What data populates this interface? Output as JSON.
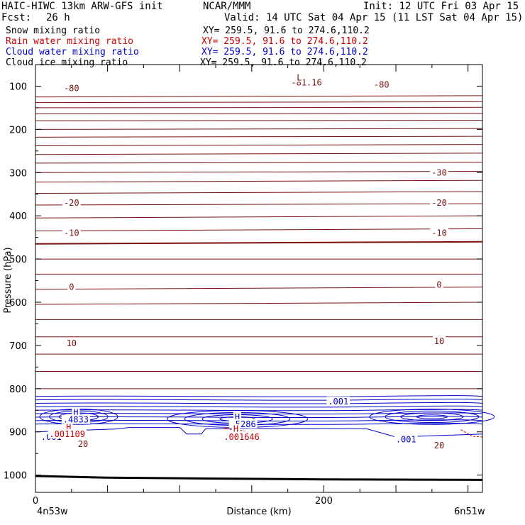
{
  "header": {
    "model_title": "HAIC-HIWC 13km ARW-GFS init",
    "org": "NCAR/MMM",
    "init": "Init: 12 UTC Fri 03 Apr 15",
    "fcst_label": "Fcst:",
    "fcst_value": "26 h",
    "valid": "Valid: 14 UTC Sat 04 Apr 15 (11 LST Sat 04 Apr 15)"
  },
  "legend": [
    {
      "name": "Snow mixing ratio",
      "xy": "XY= 259.5, 91.6 to 274.6,110.2",
      "color": "#000000"
    },
    {
      "name": "Rain water mixing ratio",
      "xy": "XY= 259.5, 91.6 to 274.6,110.2",
      "color": "#cc0000"
    },
    {
      "name": "Cloud water mixing ratio",
      "xy": "XY= 259.5, 91.6 to 274.6,110.2",
      "color": "#0000cc"
    },
    {
      "name": "Cloud ice mixing ratio",
      "xy": "XY= 259.5, 91.6 to 274.6,110.2",
      "color": "#000000"
    }
  ],
  "chart_data": {
    "type": "contour-cross-section",
    "xlabel": "Distance (km)",
    "ylabel": "Pressure (hPa)",
    "xlim": [
      0,
      310
    ],
    "ylim": [
      50,
      1040
    ],
    "x_ticks": [
      0,
      200
    ],
    "y_ticks": [
      100,
      200,
      300,
      400,
      500,
      600,
      700,
      800,
      900,
      1000
    ],
    "endpoints": {
      "left": "4n53w",
      "right": "6n51w"
    },
    "colors": {
      "temp": "#7a1010",
      "cloud": "#0000cc",
      "rain": "#cc0000",
      "ground": "#000000"
    },
    "temperature_contours": {
      "interval_c": 5,
      "levels": [
        {
          "t": -80,
          "p_start": 125,
          "p_end": 122
        },
        {
          "t": -75,
          "p_start": 138,
          "p_end": 136
        },
        {
          "t": -70,
          "p_start": 150,
          "p_end": 149
        },
        {
          "t": -65,
          "p_start": 164,
          "p_end": 163
        },
        {
          "t": -60,
          "p_start": 180,
          "p_end": 179
        },
        {
          "t": -55,
          "p_start": 200,
          "p_end": 198
        },
        {
          "t": -50,
          "p_start": 218,
          "p_end": 216
        },
        {
          "t": -45,
          "p_start": 238,
          "p_end": 235
        },
        {
          "t": -40,
          "p_start": 258,
          "p_end": 255
        },
        {
          "t": -35,
          "p_start": 278,
          "p_end": 276
        },
        {
          "t": -30,
          "p_start": 300,
          "p_end": 297
        },
        {
          "t": -25,
          "p_start": 322,
          "p_end": 318
        },
        {
          "t": -20,
          "p_start": 348,
          "p_end": 344
        },
        {
          "t": -15,
          "p_start": 375,
          "p_end": 372
        },
        {
          "t": -10,
          "p_start": 405,
          "p_end": 400
        },
        {
          "t": -5,
          "p_start": 435,
          "p_end": 430
        },
        {
          "t": 0,
          "p_start": 465,
          "p_end": 460
        },
        {
          "t": 5,
          "p_start": 500,
          "p_end": 500
        },
        {
          "t": 10,
          "p_start": 535,
          "p_end": 535
        },
        {
          "t": 15,
          "p_start": 570,
          "p_end": 565
        },
        {
          "t": 20,
          "p_start": 605,
          "p_end": 600
        },
        {
          "t": 25,
          "p_start": 640,
          "p_end": 640
        },
        {
          "t": 30,
          "p_start": 680,
          "p_end": 680
        },
        {
          "t": 35,
          "p_start": 720,
          "p_end": 720
        },
        {
          "t": 40,
          "p_start": 760,
          "p_end": 760
        },
        {
          "t": 45,
          "p_start": 800,
          "p_end": 800
        }
      ]
    },
    "temperature_labels": [
      {
        "text": "-80",
        "x": 25,
        "p": 105
      },
      {
        "text": "-80",
        "x": 240,
        "p": 97
      },
      {
        "text": "-81.16",
        "x": 188,
        "p": 92
      },
      {
        "text": "-30",
        "x": 280,
        "p": 300
      },
      {
        "text": "-20",
        "x": 25,
        "p": 370
      },
      {
        "text": "-20",
        "x": 280,
        "p": 370
      },
      {
        "text": "-10",
        "x": 25,
        "p": 440
      },
      {
        "text": "-10",
        "x": 280,
        "p": 440
      },
      {
        "text": "0",
        "x": 25,
        "p": 565
      },
      {
        "text": "0",
        "x": 280,
        "p": 560
      },
      {
        "text": "10",
        "x": 25,
        "p": 695
      },
      {
        "text": "10",
        "x": 280,
        "p": 690
      },
      {
        "text": "20",
        "x": 33,
        "p": 928
      },
      {
        "text": "20",
        "x": 280,
        "p": 932
      }
    ],
    "extrema": [
      {
        "text": "L",
        "x": 183,
        "p": 80,
        "series": "temp"
      },
      {
        "text": "H",
        "x": 28,
        "p": 855,
        "series": "cloud"
      },
      {
        "text": ".4833",
        "x": 28,
        "p": 872,
        "series": "cloud"
      },
      {
        "text": "H",
        "x": 23,
        "p": 890,
        "series": "rain"
      },
      {
        "text": ".001109",
        "x": 22,
        "p": 905,
        "series": "rain"
      },
      {
        "text": "H",
        "x": 140,
        "p": 866,
        "series": "cloud"
      },
      {
        "text": ".5286",
        "x": 144,
        "p": 882,
        "series": "cloud"
      },
      {
        "text": "H",
        "x": 139,
        "p": 893,
        "series": "rain"
      },
      {
        "text": ".001646",
        "x": 143,
        "p": 912,
        "series": "rain"
      }
    ],
    "cloud_contour_labels": [
      {
        "text": ".001",
        "x": 210,
        "p": 830
      },
      {
        "text": ".001",
        "x": 257,
        "p": 918
      },
      {
        "text": ".001",
        "x": 11,
        "p": 912
      }
    ],
    "cloud_layer": {
      "top_p": 818,
      "bottom_p": 882,
      "interval": 0.1
    }
  }
}
